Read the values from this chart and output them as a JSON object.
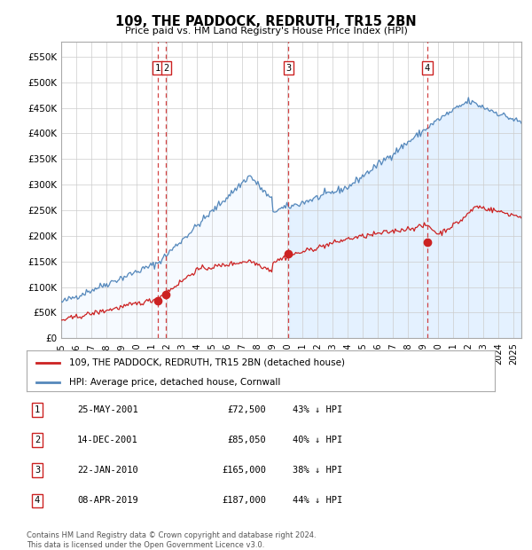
{
  "title": "109, THE PADDOCK, REDRUTH, TR15 2BN",
  "subtitle": "Price paid vs. HM Land Registry's House Price Index (HPI)",
  "xlim_start": 1995.0,
  "xlim_end": 2025.5,
  "ylim": [
    0,
    580000
  ],
  "yticks": [
    0,
    50000,
    100000,
    150000,
    200000,
    250000,
    300000,
    350000,
    400000,
    450000,
    500000,
    550000
  ],
  "ytick_labels": [
    "£0",
    "£50K",
    "£100K",
    "£150K",
    "£200K",
    "£250K",
    "£300K",
    "£350K",
    "£400K",
    "£450K",
    "£500K",
    "£550K"
  ],
  "hpi_color": "#5588bb",
  "hpi_fill_color": "#ddeeff",
  "property_color": "#cc2222",
  "dashed_line_color": "#cc2222",
  "background_color": "#ffffff",
  "grid_color": "#cccccc",
  "sale_dates_decimal": [
    2001.39,
    2001.96,
    2010.06,
    2019.27
  ],
  "sale_prices": [
    72500,
    85050,
    165000,
    187000
  ],
  "sale_labels": [
    "1",
    "2",
    "3",
    "4"
  ],
  "legend_property_label": "109, THE PADDOCK, REDRUTH, TR15 2BN (detached house)",
  "legend_hpi_label": "HPI: Average price, detached house, Cornwall",
  "table_data": [
    [
      "1",
      "25-MAY-2001",
      "£72,500",
      "43% ↓ HPI"
    ],
    [
      "2",
      "14-DEC-2001",
      "£85,050",
      "40% ↓ HPI"
    ],
    [
      "3",
      "22-JAN-2010",
      "£165,000",
      "38% ↓ HPI"
    ],
    [
      "4",
      "08-APR-2019",
      "£187,000",
      "44% ↓ HPI"
    ]
  ],
  "footnote": "Contains HM Land Registry data © Crown copyright and database right 2024.\nThis data is licensed under the Open Government Licence v3.0.",
  "xticks": [
    1995,
    1996,
    1997,
    1998,
    1999,
    2000,
    2001,
    2002,
    2003,
    2004,
    2005,
    2006,
    2007,
    2008,
    2009,
    2010,
    2011,
    2012,
    2013,
    2014,
    2015,
    2016,
    2017,
    2018,
    2019,
    2020,
    2021,
    2022,
    2023,
    2024,
    2025
  ],
  "fig_width": 6.0,
  "fig_height": 6.2,
  "dpi": 100
}
